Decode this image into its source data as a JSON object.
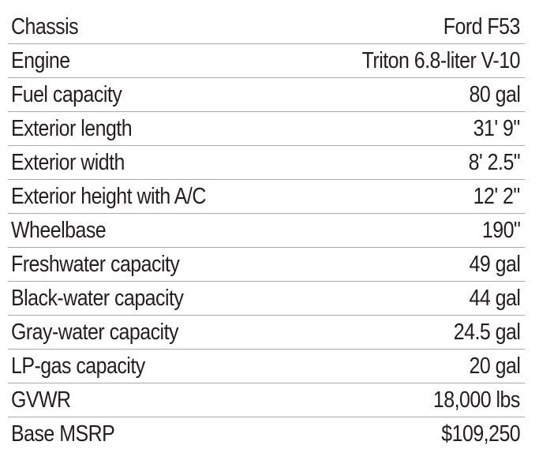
{
  "specs": {
    "rows": [
      {
        "label": "Chassis",
        "value": "Ford F53"
      },
      {
        "label": "Engine",
        "value": "Triton 6.8-liter V-10"
      },
      {
        "label": "Fuel capacity",
        "value": "80 gal"
      },
      {
        "label": "Exterior length",
        "value": "31' 9\""
      },
      {
        "label": "Exterior width",
        "value": "8' 2.5\""
      },
      {
        "label": "Exterior height with A/C",
        "value": "12' 2\""
      },
      {
        "label": "Wheelbase",
        "value": "190\""
      },
      {
        "label": "Freshwater capacity",
        "value": "49 gal"
      },
      {
        "label": "Black-water capacity",
        "value": "44 gal"
      },
      {
        "label": "Gray-water capacity",
        "value": "24.5 gal"
      },
      {
        "label": "LP-gas capacity",
        "value": "20 gal"
      },
      {
        "label": "GVWR",
        "value": "18,000 lbs"
      },
      {
        "label": "Base MSRP",
        "value": "$109,250"
      }
    ]
  },
  "colors": {
    "text": "#231f20",
    "divider": "#a7a9ac",
    "background": "#ffffff"
  }
}
